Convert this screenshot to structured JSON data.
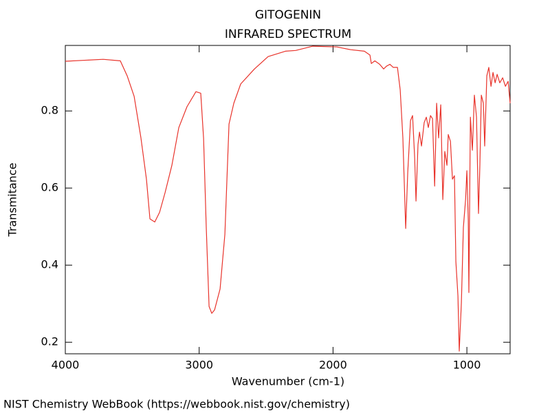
{
  "chart_data": {
    "type": "line",
    "title": "GITOGENIN",
    "subtitle": "INFRARED SPECTRUM",
    "x_label": "Wavenumber (cm-1)",
    "y_label": "Transmitance",
    "source": "NIST Chemistry WebBook (https://webbook.nist.gov/chemistry)",
    "xlim": [
      4000,
      677
    ],
    "ylim": [
      0.17,
      0.97
    ],
    "xticks": [
      4000,
      3000,
      2000,
      1000
    ],
    "yticks": [
      0.2,
      0.4,
      0.6,
      0.8
    ],
    "series": [
      {
        "color": "#e8322a",
        "x": [
          4000,
          3717,
          3589,
          3538,
          3486,
          3435,
          3394,
          3368,
          3332,
          3296,
          3255,
          3204,
          3152,
          3091,
          3024,
          2988,
          2967,
          2947,
          2926,
          2906,
          2885,
          2844,
          2808,
          2777,
          2741,
          2690,
          2587,
          2485,
          2356,
          2279,
          2151,
          1971,
          1868,
          1766,
          1724,
          1714,
          1688,
          1652,
          1622,
          1601,
          1575,
          1550,
          1519,
          1498,
          1478,
          1457,
          1442,
          1421,
          1406,
          1390,
          1380,
          1365,
          1354,
          1339,
          1319,
          1303,
          1288,
          1272,
          1257,
          1241,
          1226,
          1211,
          1195,
          1180,
          1165,
          1149,
          1139,
          1123,
          1108,
          1093,
          1082,
          1067,
          1057,
          1041,
          1026,
          1010,
          1000,
          990,
          985,
          974,
          959,
          944,
          928,
          913,
          903,
          892,
          877,
          867,
          851,
          836,
          820,
          805,
          789,
          774,
          754,
          733,
          712,
          692,
          677
        ],
        "values": [
          0.929,
          0.934,
          0.93,
          0.891,
          0.838,
          0.73,
          0.623,
          0.52,
          0.512,
          0.537,
          0.588,
          0.659,
          0.757,
          0.811,
          0.85,
          0.846,
          0.73,
          0.498,
          0.293,
          0.275,
          0.284,
          0.338,
          0.48,
          0.766,
          0.82,
          0.87,
          0.909,
          0.941,
          0.955,
          0.957,
          0.968,
          0.966,
          0.959,
          0.955,
          0.945,
          0.923,
          0.93,
          0.921,
          0.909,
          0.916,
          0.921,
          0.913,
          0.913,
          0.855,
          0.73,
          0.495,
          0.641,
          0.775,
          0.788,
          0.677,
          0.566,
          0.713,
          0.745,
          0.709,
          0.77,
          0.784,
          0.757,
          0.788,
          0.78,
          0.605,
          0.82,
          0.73,
          0.816,
          0.57,
          0.695,
          0.659,
          0.739,
          0.721,
          0.623,
          0.632,
          0.409,
          0.32,
          0.177,
          0.302,
          0.498,
          0.57,
          0.645,
          0.516,
          0.329,
          0.784,
          0.698,
          0.841,
          0.784,
          0.534,
          0.659,
          0.841,
          0.82,
          0.709,
          0.891,
          0.913,
          0.864,
          0.9,
          0.873,
          0.895,
          0.873,
          0.886,
          0.864,
          0.877,
          0.82
        ]
      }
    ]
  }
}
